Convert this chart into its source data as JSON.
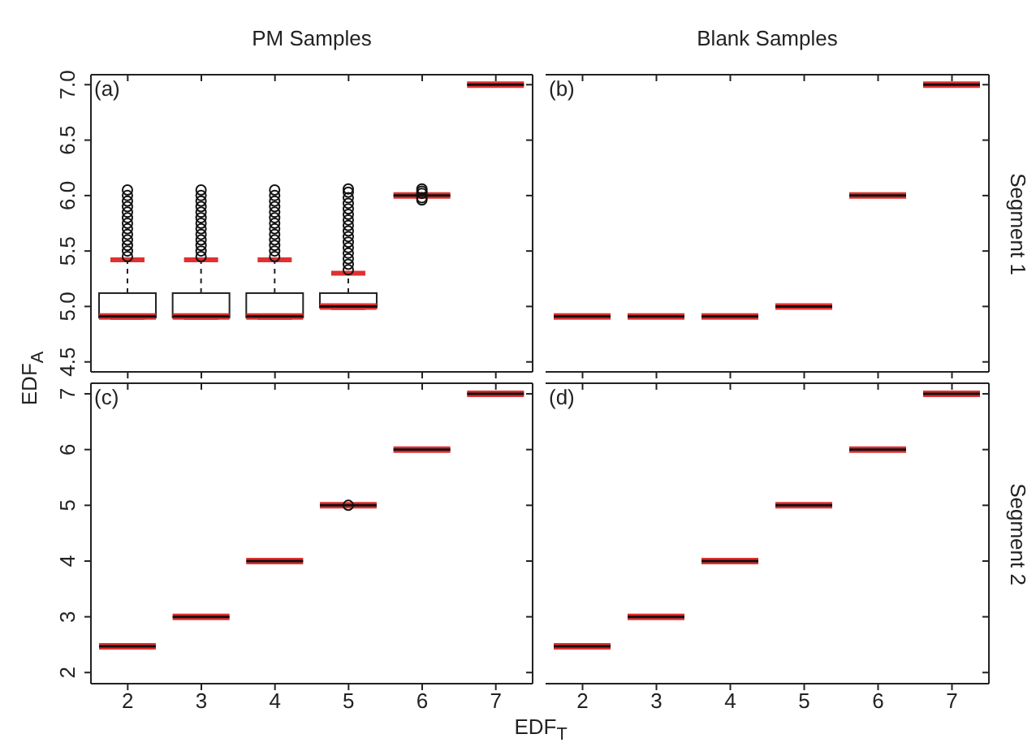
{
  "chart_data": [
    {
      "type": "box",
      "title": "PM Samples",
      "ylabel": "EDF$_{A}$",
      "annotations": [
        "(a)"
      ],
      "categories": [
        "2",
        "3",
        "4",
        "5",
        "6",
        "7"
      ],
      "ylim": [
        4.41,
        7.09
      ],
      "yticks": [
        4.5,
        {
          "value": 5,
          "label": "5.0"
        },
        5.5,
        {
          "value": 6,
          "label": "6.0"
        },
        6.5,
        {
          "value": 7,
          "label": "7.0"
        }
      ],
      "tick_labels": "y",
      "series": [
        {
          "color": "#e03030",
          "boxes": [
            {
              "low": 4.9,
              "q1": 4.9,
              "median": 4.91,
              "q3": 5.12,
              "high": 5.42,
              "outliers": [
                5.45,
                5.5,
                5.55,
                5.6,
                5.65,
                5.7,
                5.75,
                5.8,
                5.85,
                5.9,
                5.95,
                6.0,
                6.05
              ]
            },
            {
              "low": 4.9,
              "q1": 4.9,
              "median": 4.91,
              "q3": 5.12,
              "high": 5.42,
              "outliers": [
                5.45,
                5.5,
                5.55,
                5.6,
                5.65,
                5.7,
                5.75,
                5.8,
                5.85,
                5.9,
                5.95,
                6.0,
                6.05
              ]
            },
            {
              "low": 4.9,
              "q1": 4.9,
              "median": 4.91,
              "q3": 5.12,
              "high": 5.42,
              "outliers": [
                5.45,
                5.5,
                5.55,
                5.6,
                5.65,
                5.7,
                5.75,
                5.8,
                5.85,
                5.9,
                5.95,
                6.0,
                6.05
              ]
            },
            {
              "low": 4.99,
              "q1": 4.99,
              "median": 5.0,
              "q3": 5.12,
              "high": 5.3,
              "outliers": [
                5.33,
                5.38,
                5.43,
                5.48,
                5.53,
                5.58,
                5.63,
                5.68,
                5.73,
                5.78,
                5.83,
                5.88,
                5.93,
                5.98,
                6.03,
                6.06
              ]
            },
            {
              "low": 6.0,
              "q1": 6.0,
              "median": 6.0,
              "q3": 6.0,
              "high": 6.0,
              "outliers": [
                5.96,
                5.98,
                6.02,
                6.04,
                6.06
              ]
            },
            {
              "low": 7.0,
              "q1": 7.0,
              "median": 7.0,
              "q3": 7.0,
              "high": 7.0
            }
          ]
        }
      ]
    },
    {
      "type": "box",
      "title": "Blank Samples",
      "y2label": "Segment 1",
      "annotations": [
        "(b)"
      ],
      "categories": [
        "2",
        "3",
        "4",
        "5",
        "6",
        "7"
      ],
      "ylim": [
        4.41,
        7.09
      ],
      "yticks": [
        4.5,
        5,
        5.5,
        6,
        6.5,
        7
      ],
      "tick_labels": false,
      "series": [
        {
          "color": "#e03030",
          "boxes": [
            {
              "low": 4.91,
              "q1": 4.91,
              "median": 4.91,
              "q3": 4.91,
              "high": 4.91
            },
            {
              "low": 4.91,
              "q1": 4.91,
              "median": 4.91,
              "q3": 4.91,
              "high": 4.91
            },
            {
              "low": 4.91,
              "q1": 4.91,
              "median": 4.91,
              "q3": 4.91,
              "high": 4.91
            },
            {
              "low": 5.0,
              "q1": 5.0,
              "median": 5.0,
              "q3": 5.0,
              "high": 5.0
            },
            {
              "low": 6.0,
              "q1": 6.0,
              "median": 6.0,
              "q3": 6.0,
              "high": 6.0
            },
            {
              "low": 7.0,
              "q1": 7.0,
              "median": 7.0,
              "q3": 7.0,
              "high": 7.0
            }
          ]
        }
      ]
    },
    {
      "type": "box",
      "xlabel": "EDF$_{T}$",
      "annotations": [
        "(c)"
      ],
      "categories": [
        "2",
        "3",
        "4",
        "5",
        "6",
        "7"
      ],
      "ylim": [
        1.8,
        7.19
      ],
      "yticks": [
        2,
        3,
        4,
        5,
        6,
        7
      ],
      "series": [
        {
          "color": "#e03030",
          "boxes": [
            {
              "low": 2.47,
              "q1": 2.47,
              "median": 2.47,
              "q3": 2.47,
              "high": 2.47
            },
            {
              "low": 3.0,
              "q1": 3.0,
              "median": 3.0,
              "q3": 3.0,
              "high": 3.0
            },
            {
              "low": 4.0,
              "q1": 4.0,
              "median": 4.0,
              "q3": 4.0,
              "high": 4.0
            },
            {
              "low": 5.0,
              "q1": 5.0,
              "median": 5.0,
              "q3": 5.0,
              "high": 5.0,
              "outliers": [
                5.0
              ]
            },
            {
              "low": 6.0,
              "q1": 6.0,
              "median": 6.0,
              "q3": 6.0,
              "high": 6.0
            },
            {
              "low": 7.0,
              "q1": 7.0,
              "median": 7.0,
              "q3": 7.0,
              "high": 7.0
            }
          ]
        }
      ]
    },
    {
      "type": "box",
      "y2label": "Segment 2",
      "annotations": [
        "(d)"
      ],
      "categories": [
        "2",
        "3",
        "4",
        "5",
        "6",
        "7"
      ],
      "ylim": [
        1.8,
        7.19
      ],
      "yticks": [
        2,
        3,
        4,
        5,
        6,
        7
      ],
      "tick_labels": "x",
      "series": [
        {
          "color": "#e03030",
          "boxes": [
            {
              "low": 2.47,
              "q1": 2.47,
              "median": 2.47,
              "q3": 2.47,
              "high": 2.47
            },
            {
              "low": 3.0,
              "q1": 3.0,
              "median": 3.0,
              "q3": 3.0,
              "high": 3.0
            },
            {
              "low": 4.0,
              "q1": 4.0,
              "median": 4.0,
              "q3": 4.0,
              "high": 4.0
            },
            {
              "low": 5.0,
              "q1": 5.0,
              "median": 5.0,
              "q3": 5.0,
              "high": 5.0
            },
            {
              "low": 6.0,
              "q1": 6.0,
              "median": 6.0,
              "q3": 6.0,
              "high": 6.0
            },
            {
              "low": 7.0,
              "q1": 7.0,
              "median": 7.0,
              "q3": 7.0,
              "high": 7.0
            }
          ]
        }
      ]
    }
  ]
}
